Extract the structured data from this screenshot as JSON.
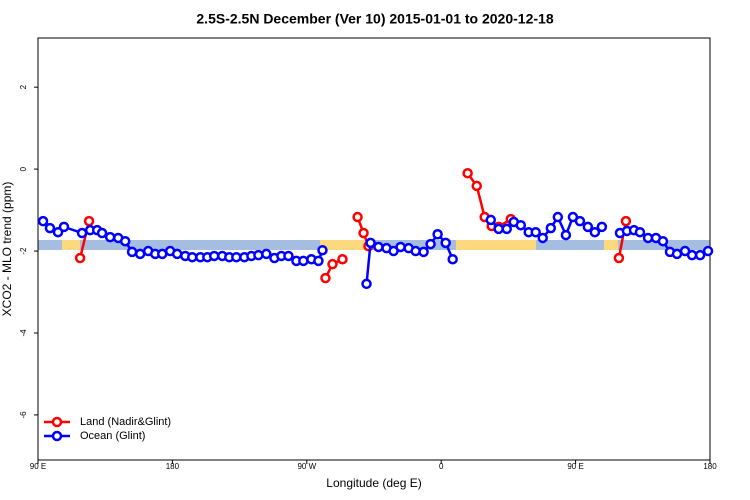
{
  "chart_data": {
    "type": "line",
    "title": "2.5S-2.5N December (Ver 10)   2015-01-01 to 2020-12-18",
    "x_label": "Longitude (deg E)",
    "y_label": "XCO2 - MLO trend (ppm)",
    "xlim": [
      90,
      540
    ],
    "ylim": [
      -7.1,
      3.2
    ],
    "xticks": [
      {
        "value": 90,
        "label": "90 E"
      },
      {
        "value": 180,
        "label": "180"
      },
      {
        "value": 270,
        "label": "90 W"
      },
      {
        "value": 360,
        "label": "0"
      },
      {
        "value": 450,
        "label": "90 E"
      },
      {
        "value": 540,
        "label": "180"
      }
    ],
    "yticks": [
      2,
      0,
      -2,
      -4,
      -6
    ],
    "legend": "bottom-left",
    "series": [
      {
        "name": "Land (Nadir&Glint)",
        "color": "#ff0000",
        "x": [
          118.2,
          124.2,
          null,
          282.5,
          287.2,
          293.9,
          null,
          304,
          308,
          311.3,
          null,
          377.7,
          383.8,
          389.1,
          393.8,
          398.5,
          406.6,
          null,
          479,
          483.7
        ],
        "values": [
          -2.17,
          -1.27,
          null,
          -2.66,
          -2.32,
          -2.2,
          null,
          -1.17,
          -1.56,
          -1.88,
          null,
          -0.1,
          -0.41,
          -1.17,
          -1.39,
          -1.41,
          -1.22,
          null,
          -2.17,
          -1.27
        ]
      },
      {
        "name": "Ocean (Glint)",
        "color": "#0000ff",
        "x": [
          93.4,
          98,
          103.4,
          107.4,
          119.5,
          124.9,
          129.6,
          132.9,
          138.3,
          143.7,
          148.4,
          153,
          158.4,
          163.8,
          168.5,
          173.2,
          178.5,
          183.2,
          188.6,
          193.3,
          198.7,
          203.4,
          208,
          213.4,
          218.1,
          222.8,
          228.2,
          232.9,
          237.6,
          242.9,
          248.3,
          253,
          257.7,
          263,
          267.7,
          273.1,
          277.8,
          280.5,
          null,
          310,
          312.7,
          318,
          323.4,
          328.1,
          332.8,
          338.2,
          342.9,
          348.2,
          352.9,
          357.6,
          363,
          367.7,
          null,
          393.2,
          398.5,
          403.9,
          408.6,
          413.3,
          418.6,
          423.3,
          428,
          433.4,
          438.1,
          443.5,
          448.2,
          452.9,
          458.2,
          462.9,
          467.6,
          null,
          479.7,
          484.4,
          489.1,
          493.1,
          498.5,
          503.8,
          508.5,
          513.2,
          517.9,
          523.3,
          528,
          533.4,
          538.7
        ],
        "values": [
          -1.27,
          -1.44,
          -1.54,
          -1.41,
          -1.56,
          -1.49,
          -1.49,
          -1.56,
          -1.66,
          -1.68,
          -1.76,
          -2.02,
          -2.07,
          -2.0,
          -2.07,
          -2.07,
          -2.0,
          -2.07,
          -2.12,
          -2.15,
          -2.15,
          -2.15,
          -2.12,
          -2.12,
          -2.15,
          -2.15,
          -2.15,
          -2.12,
          -2.1,
          -2.07,
          -2.17,
          -2.12,
          -2.12,
          -2.24,
          -2.24,
          -2.2,
          -2.24,
          -1.98,
          null,
          -2.8,
          -1.8,
          -1.9,
          -1.93,
          -2.0,
          -1.9,
          -1.93,
          -2.0,
          -2.02,
          -1.83,
          -1.59,
          -1.8,
          -2.2,
          null,
          -1.24,
          -1.46,
          -1.46,
          -1.29,
          -1.37,
          -1.54,
          -1.54,
          -1.68,
          -1.44,
          -1.17,
          -1.61,
          -1.17,
          -1.27,
          -1.41,
          -1.54,
          -1.41,
          null,
          -1.56,
          -1.51,
          -1.49,
          -1.54,
          -1.68,
          -1.68,
          -1.76,
          -2.02,
          -2.07,
          -2.0,
          -2.1,
          -2.1,
          -2.0
        ]
      }
    ]
  }
}
